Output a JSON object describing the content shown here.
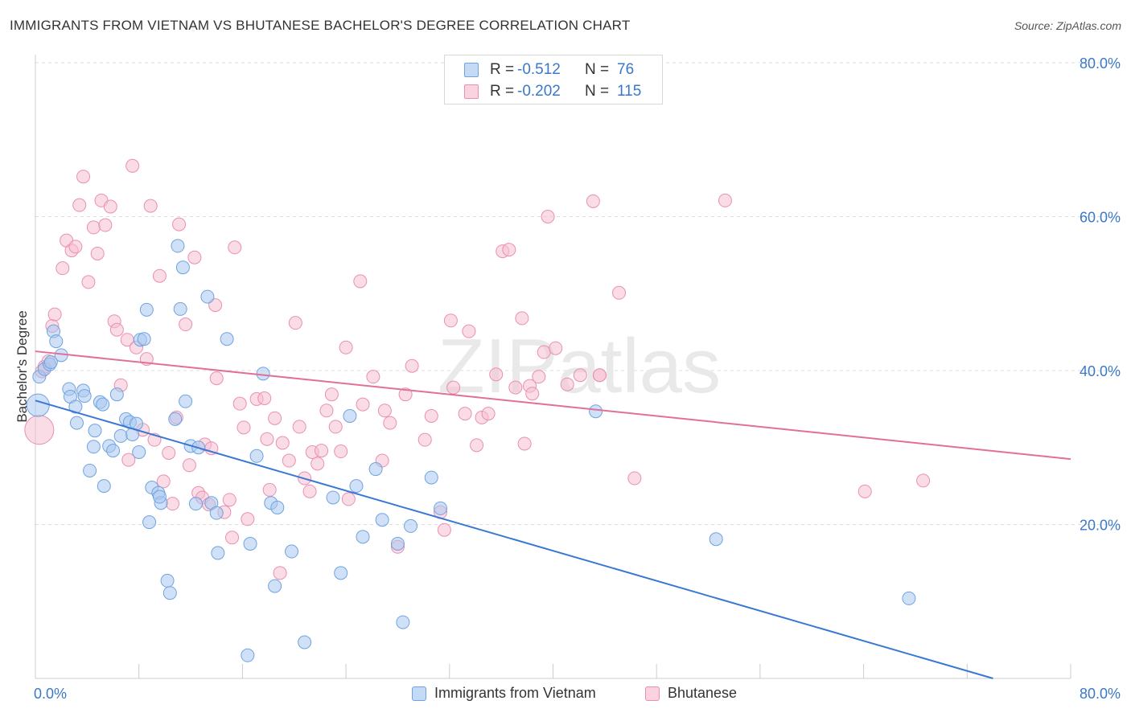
{
  "title": "IMMIGRANTS FROM VIETNAM VS BHUTANESE BACHELOR'S DEGREE CORRELATION CHART",
  "source": "Source: ZipAtlas.com",
  "watermark": "ZIPatlas",
  "colors": {
    "blue": "#6fa3e0",
    "blue_fill": "#a9c8f0",
    "blue_line": "#3878d4",
    "pink": "#ea8fb0",
    "pink_fill": "#f5bfd2",
    "pink_line": "#e0709a",
    "axis_label": "#3a78c9",
    "grid": "#dddddd"
  },
  "stats": {
    "rows": [
      {
        "r_label": "R =",
        "r_value": "-0.512",
        "n_label": "N =",
        "n_value": "76",
        "series": "blue"
      },
      {
        "r_label": "R =",
        "r_value": "-0.202",
        "n_label": "N =",
        "n_value": "115",
        "series": "pink"
      }
    ]
  },
  "legend": {
    "items": [
      {
        "label": "Immigrants from Vietnam",
        "series": "blue"
      },
      {
        "label": "Bhutanese",
        "series": "pink"
      }
    ]
  },
  "chart_data": {
    "type": "scatter",
    "title": "IMMIGRANTS FROM VIETNAM VS BHUTANESE BACHELOR'S DEGREE CORRELATION CHART",
    "xlabel": "",
    "ylabel": "Bachelor's Degree",
    "xlim": [
      0,
      80
    ],
    "ylim": [
      0,
      80
    ],
    "x_tick_labels": {
      "left": "0.0%",
      "right": "80.0%"
    },
    "y_ticks": [
      {
        "value": 20,
        "label": "20.0%"
      },
      {
        "value": 40,
        "label": "40.0%"
      },
      {
        "value": 60,
        "label": "60.0%"
      },
      {
        "value": 80,
        "label": "80.0%"
      }
    ],
    "grid": true,
    "legend_position": "bottom",
    "series": [
      {
        "name": "Immigrants from Vietnam",
        "color": "blue",
        "trend": {
          "x": [
            0,
            74
          ],
          "y": [
            36.1,
            0
          ]
        },
        "points": [
          [
            0.2,
            35.5
          ],
          [
            0.3,
            39.2
          ],
          [
            0.7,
            40.2
          ],
          [
            1.1,
            40.8
          ],
          [
            1.2,
            41.1
          ],
          [
            1.4,
            45.1
          ],
          [
            1.6,
            43.8
          ],
          [
            2.0,
            42.0
          ],
          [
            2.6,
            37.6
          ],
          [
            2.7,
            36.6
          ],
          [
            3.1,
            35.3
          ],
          [
            3.2,
            33.2
          ],
          [
            3.7,
            37.4
          ],
          [
            3.8,
            36.7
          ],
          [
            4.2,
            27.0
          ],
          [
            4.5,
            30.1
          ],
          [
            4.6,
            32.2
          ],
          [
            5.0,
            35.9
          ],
          [
            5.2,
            35.6
          ],
          [
            5.3,
            25.0
          ],
          [
            5.7,
            30.2
          ],
          [
            6.0,
            29.6
          ],
          [
            6.3,
            36.9
          ],
          [
            6.6,
            31.5
          ],
          [
            7.0,
            33.7
          ],
          [
            7.3,
            33.3
          ],
          [
            7.5,
            31.7
          ],
          [
            7.8,
            33.1
          ],
          [
            8.0,
            29.4
          ],
          [
            8.1,
            44.0
          ],
          [
            8.4,
            44.1
          ],
          [
            8.6,
            47.9
          ],
          [
            8.8,
            20.3
          ],
          [
            9.0,
            24.8
          ],
          [
            9.5,
            24.1
          ],
          [
            9.7,
            22.8
          ],
          [
            10.2,
            12.7
          ],
          [
            10.4,
            11.1
          ],
          [
            10.8,
            33.7
          ],
          [
            11.0,
            56.2
          ],
          [
            11.2,
            48.0
          ],
          [
            11.4,
            53.4
          ],
          [
            11.6,
            36.0
          ],
          [
            12.0,
            30.2
          ],
          [
            12.6,
            30.0
          ],
          [
            13.3,
            49.6
          ],
          [
            13.6,
            22.8
          ],
          [
            14.0,
            21.5
          ],
          [
            14.1,
            16.3
          ],
          [
            14.8,
            44.1
          ],
          [
            16.6,
            17.5
          ],
          [
            17.1,
            28.9
          ],
          [
            17.6,
            39.6
          ],
          [
            18.2,
            22.8
          ],
          [
            18.5,
            12.0
          ],
          [
            18.7,
            22.2
          ],
          [
            19.8,
            16.5
          ],
          [
            20.8,
            4.7
          ],
          [
            23.0,
            23.5
          ],
          [
            23.6,
            13.7
          ],
          [
            24.3,
            34.1
          ],
          [
            24.8,
            25.0
          ],
          [
            25.3,
            18.4
          ],
          [
            26.3,
            27.2
          ],
          [
            26.8,
            20.6
          ],
          [
            28.0,
            17.5
          ],
          [
            28.4,
            7.3
          ],
          [
            29.0,
            19.8
          ],
          [
            30.6,
            26.1
          ],
          [
            31.3,
            22.1
          ],
          [
            43.3,
            34.7
          ],
          [
            52.6,
            18.1
          ],
          [
            67.5,
            10.4
          ],
          [
            16.4,
            3.0
          ],
          [
            12.4,
            22.7
          ],
          [
            9.6,
            23.6
          ]
        ]
      },
      {
        "name": "Bhutanese",
        "color": "pink",
        "trend": {
          "x": [
            0,
            80
          ],
          "y": [
            42.5,
            28.5
          ]
        },
        "points": [
          [
            0.3,
            32.3
          ],
          [
            0.5,
            39.9
          ],
          [
            0.7,
            40.5
          ],
          [
            1.0,
            41.2
          ],
          [
            1.3,
            45.8
          ],
          [
            1.5,
            47.3
          ],
          [
            2.1,
            53.3
          ],
          [
            2.4,
            56.9
          ],
          [
            2.8,
            55.6
          ],
          [
            3.1,
            56.1
          ],
          [
            3.4,
            61.5
          ],
          [
            3.7,
            65.2
          ],
          [
            4.1,
            51.5
          ],
          [
            4.5,
            58.6
          ],
          [
            4.8,
            55.2
          ],
          [
            5.1,
            62.1
          ],
          [
            5.4,
            58.9
          ],
          [
            5.8,
            61.3
          ],
          [
            6.1,
            46.4
          ],
          [
            6.3,
            45.3
          ],
          [
            6.6,
            38.1
          ],
          [
            7.1,
            44.0
          ],
          [
            7.2,
            28.4
          ],
          [
            7.5,
            66.6
          ],
          [
            7.8,
            43.0
          ],
          [
            8.3,
            32.3
          ],
          [
            8.6,
            41.5
          ],
          [
            8.9,
            61.4
          ],
          [
            9.2,
            31.0
          ],
          [
            9.6,
            52.3
          ],
          [
            9.9,
            25.6
          ],
          [
            10.3,
            29.3
          ],
          [
            10.6,
            22.7
          ],
          [
            10.9,
            33.9
          ],
          [
            11.1,
            59.0
          ],
          [
            11.6,
            46.0
          ],
          [
            11.9,
            27.7
          ],
          [
            12.3,
            54.7
          ],
          [
            12.6,
            24.1
          ],
          [
            12.9,
            23.5
          ],
          [
            13.1,
            30.4
          ],
          [
            13.4,
            22.6
          ],
          [
            13.6,
            29.9
          ],
          [
            13.9,
            48.5
          ],
          [
            14.0,
            39.0
          ],
          [
            14.6,
            21.6
          ],
          [
            15.0,
            23.2
          ],
          [
            15.2,
            18.3
          ],
          [
            15.4,
            56.0
          ],
          [
            15.8,
            35.7
          ],
          [
            16.1,
            32.6
          ],
          [
            16.4,
            20.7
          ],
          [
            17.1,
            36.3
          ],
          [
            17.7,
            36.4
          ],
          [
            17.9,
            31.1
          ],
          [
            18.1,
            24.5
          ],
          [
            18.5,
            33.8
          ],
          [
            18.9,
            13.7
          ],
          [
            19.1,
            30.6
          ],
          [
            19.6,
            28.3
          ],
          [
            20.1,
            46.2
          ],
          [
            20.4,
            32.7
          ],
          [
            20.8,
            26.0
          ],
          [
            21.2,
            24.3
          ],
          [
            21.4,
            29.4
          ],
          [
            21.8,
            27.9
          ],
          [
            22.1,
            29.6
          ],
          [
            22.5,
            34.8
          ],
          [
            22.9,
            36.9
          ],
          [
            23.2,
            32.7
          ],
          [
            23.6,
            29.5
          ],
          [
            24.0,
            43.0
          ],
          [
            24.2,
            23.3
          ],
          [
            25.3,
            35.6
          ],
          [
            25.1,
            51.6
          ],
          [
            26.1,
            39.2
          ],
          [
            27.0,
            34.8
          ],
          [
            26.8,
            28.3
          ],
          [
            27.4,
            33.2
          ],
          [
            28.0,
            17.1
          ],
          [
            28.6,
            36.9
          ],
          [
            29.1,
            40.6
          ],
          [
            30.1,
            31.0
          ],
          [
            30.6,
            34.1
          ],
          [
            31.3,
            21.6
          ],
          [
            31.6,
            19.3
          ],
          [
            32.1,
            46.5
          ],
          [
            32.3,
            37.8
          ],
          [
            33.2,
            34.4
          ],
          [
            33.5,
            45.1
          ],
          [
            34.1,
            30.3
          ],
          [
            34.5,
            33.9
          ],
          [
            35.0,
            34.4
          ],
          [
            35.6,
            39.5
          ],
          [
            36.1,
            55.5
          ],
          [
            36.6,
            55.7
          ],
          [
            37.1,
            37.8
          ],
          [
            37.6,
            46.8
          ],
          [
            37.8,
            30.5
          ],
          [
            38.2,
            38.0
          ],
          [
            38.4,
            37.0
          ],
          [
            38.9,
            39.2
          ],
          [
            39.3,
            42.4
          ],
          [
            39.6,
            60.0
          ],
          [
            40.2,
            42.9
          ],
          [
            41.1,
            38.2
          ],
          [
            42.1,
            39.4
          ],
          [
            43.1,
            62.0
          ],
          [
            43.6,
            39.4
          ],
          [
            45.1,
            50.1
          ],
          [
            46.3,
            26.0
          ],
          [
            53.3,
            62.1
          ],
          [
            64.1,
            24.3
          ],
          [
            68.6,
            25.7
          ],
          [
            43.6,
            39.4
          ]
        ]
      }
    ]
  }
}
